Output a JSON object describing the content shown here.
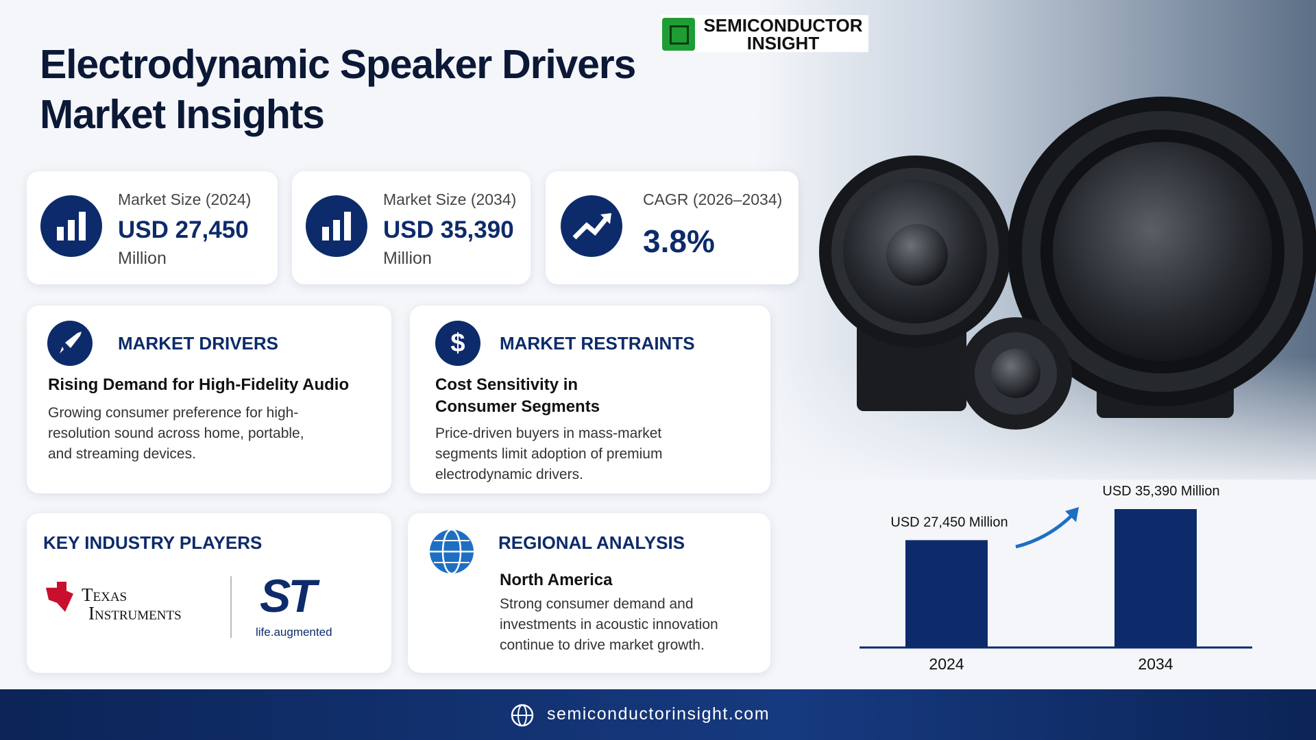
{
  "header": {
    "title_lines": [
      "Electrodynamic Speaker Drivers",
      "Market Insights"
    ],
    "brand": [
      "SEMICONDUCTOR",
      "INSIGHT"
    ]
  },
  "stats": [
    {
      "label": "Market Size (2024)",
      "value": "USD 27,450",
      "unit": "Million"
    },
    {
      "label": "Market Size (2034)",
      "value": "USD 35,390",
      "unit": "Million"
    },
    {
      "label": "CAGR (2026–2034)",
      "value": "3.8%"
    }
  ],
  "drivers": {
    "heading": "MARKET DRIVERS",
    "title": "Rising Demand for High-Fidelity Audio",
    "text": "Growing consumer preference for high-resolution sound across home, portable, and streaming devices."
  },
  "restraints": {
    "heading": "MARKET RESTRAINTS",
    "title": "Cost Sensitivity in Consumer Segments",
    "text": "Price-driven buyers in mass-market segments limit adoption of premium electrodynamic drivers."
  },
  "players": {
    "heading": "KEY INDUSTRY PLAYERS",
    "logos": [
      {
        "name": [
          "Texas",
          "Instruments"
        ]
      },
      {
        "mark": "ST",
        "tagline": "life.augmented"
      }
    ]
  },
  "region": {
    "heading": "REGIONAL ANALYSIS",
    "title": "North America",
    "text": "Strong consumer demand and investments in acoustic innovation continue to drive market growth."
  },
  "chart_data": {
    "type": "bar",
    "categories": [
      "2024",
      "2034"
    ],
    "values": [
      27450,
      35390
    ],
    "value_labels": [
      "USD 27,450 Million",
      "USD 35,390 Million"
    ],
    "color": "#0d2b6b"
  },
  "footer": {
    "url": "semiconductorinsight.com"
  }
}
